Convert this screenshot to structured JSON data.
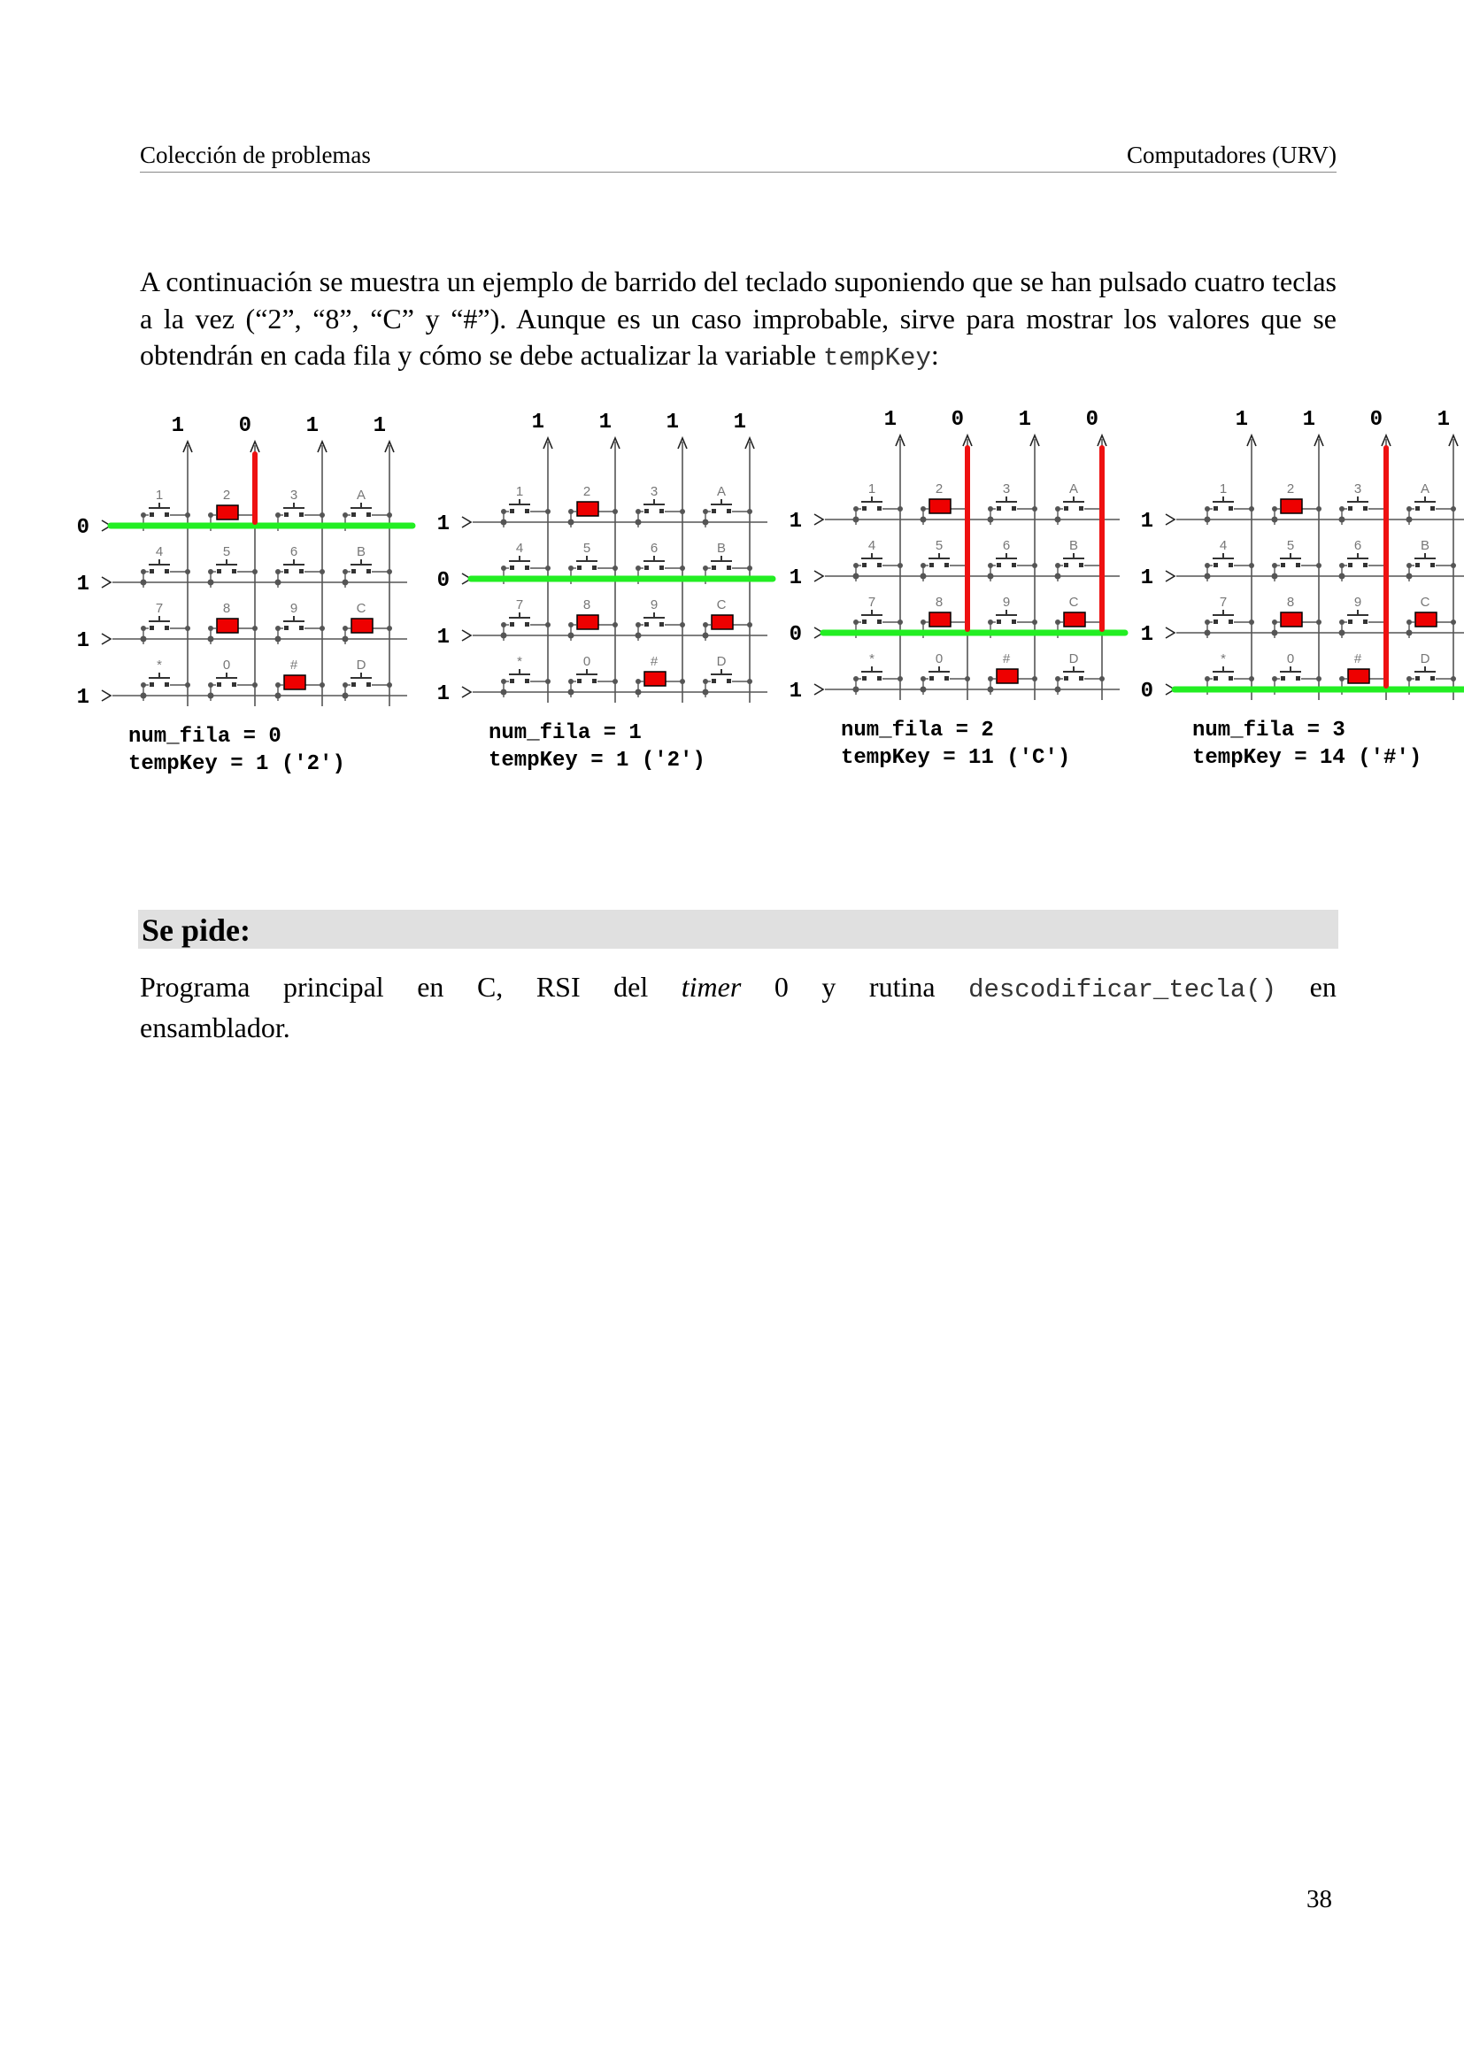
{
  "header": {
    "left": "Colección de problemas",
    "right": "Computadores (URV)"
  },
  "intro": {
    "text": "A continuación se muestra un ejemplo de barrido del teclado suponiendo que se han pulsado cuatro teclas a la vez (“2”, “8”, “C” y “#”). Aunque es un caso improbable, sirve para mostrar los valores que se obtendrán en cada fila y cómo se debe actualizar la variable",
    "code": "tempKey",
    "end": ":"
  },
  "keypad": {
    "keys": [
      [
        "1",
        "2",
        "3",
        "A"
      ],
      [
        "4",
        "5",
        "6",
        "B"
      ],
      [
        "7",
        "8",
        "9",
        "C"
      ],
      [
        "*",
        "0",
        "#",
        "D"
      ]
    ],
    "pressed": [
      "2",
      "8",
      "C",
      "#"
    ],
    "colors": {
      "pressed": "#ee0000",
      "active_row": "#22ee22",
      "signal": "#ee1111",
      "wire": "#555555",
      "label": "#777777"
    },
    "panels": [
      {
        "cols": [
          "1",
          "0",
          "1",
          "1"
        ],
        "rows": [
          "0",
          "1",
          "1",
          "1"
        ],
        "line1": "num_fila = 0",
        "line2": "tempKey = 1 ('2')"
      },
      {
        "cols": [
          "1",
          "1",
          "1",
          "1"
        ],
        "rows": [
          "1",
          "0",
          "1",
          "1"
        ],
        "line1": "num_fila = 1",
        "line2": "tempKey = 1 ('2')"
      },
      {
        "cols": [
          "1",
          "0",
          "1",
          "0"
        ],
        "rows": [
          "1",
          "1",
          "0",
          "1"
        ],
        "line1": "num_fila = 2",
        "line2": "tempKey = 11 ('C')"
      },
      {
        "cols": [
          "1",
          "1",
          "0",
          "1"
        ],
        "rows": [
          "1",
          "1",
          "1",
          "0"
        ],
        "line1": "num_fila = 3",
        "line2": "tempKey = 14 ('#')"
      }
    ]
  },
  "request": {
    "title": "Se pide:",
    "words": [
      "Programa",
      "principal",
      "en",
      "C,",
      "RSI",
      "del",
      "timer",
      "0",
      "y",
      "rutina",
      "descodificar_tecla()",
      "en"
    ],
    "line2": "ensamblador."
  },
  "page_number": "38"
}
